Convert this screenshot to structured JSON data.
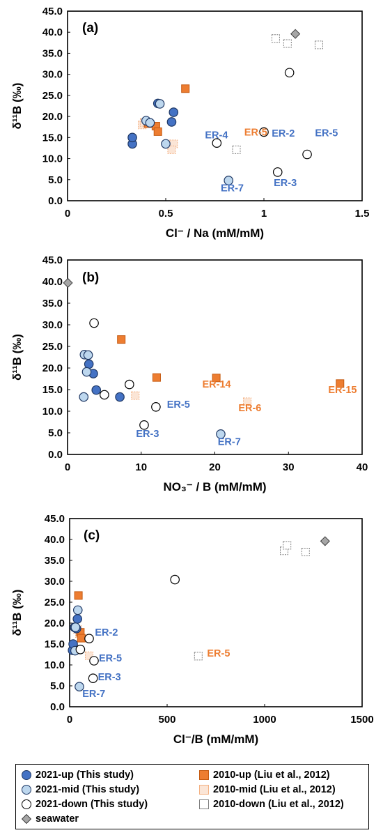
{
  "chart_data": [
    {
      "type": "scatter",
      "panel_label": "(a)",
      "xlabel": "Cl⁻ / Na (mM/mM)",
      "ylabel": "δ¹¹B (‰)",
      "xlim": [
        0,
        1.5
      ],
      "ylim": [
        0,
        45
      ],
      "x_ticks": [
        "0",
        "0.5",
        "1",
        "1.5"
      ],
      "y_ticks": [
        "0.0",
        "5.0",
        "10.0",
        "15.0",
        "20.0",
        "25.0",
        "30.0",
        "35.0",
        "40.0",
        "45.0"
      ],
      "series": [
        {
          "name": "2021-up (This study)",
          "points": [
            [
              0.33,
              13.5
            ],
            [
              0.33,
              15.0
            ],
            [
              0.53,
              18.7
            ],
            [
              0.54,
              21.0
            ],
            [
              0.46,
              23.1
            ]
          ]
        },
        {
          "name": "2021-mid (This study)",
          "points": [
            [
              0.4,
              19.0
            ],
            [
              0.42,
              18.5
            ],
            [
              0.47,
              23.0
            ],
            [
              0.5,
              13.5
            ],
            [
              0.82,
              4.8
            ]
          ]
        },
        {
          "name": "2021-down (This study)",
          "points": [
            [
              0.76,
              13.7
            ],
            [
              1.0,
              16.3
            ],
            [
              1.13,
              30.4
            ],
            [
              1.07,
              6.8
            ],
            [
              1.22,
              11.0
            ]
          ]
        },
        {
          "name": "2010-up (Liu et al., 2012)",
          "points": [
            [
              0.41,
              18.3
            ],
            [
              0.45,
              17.7
            ],
            [
              0.46,
              16.4
            ],
            [
              0.6,
              26.6
            ]
          ]
        },
        {
          "name": "2010-mid (Liu et al., 2012)",
          "points": [
            [
              0.38,
              18.0
            ],
            [
              0.39,
              18.6
            ],
            [
              0.54,
              13.5
            ],
            [
              0.53,
              12.1
            ]
          ]
        },
        {
          "name": "2010-down (Liu et al., 2012)",
          "points": [
            [
              0.86,
              12.1
            ],
            [
              1.06,
              38.5
            ],
            [
              1.12,
              37.3
            ],
            [
              1.28,
              37.0
            ]
          ]
        },
        {
          "name": "seawater",
          "points": [
            [
              1.16,
              39.6
            ]
          ]
        }
      ],
      "annotations": [
        {
          "text": "ER-2",
          "x": 1.04,
          "y": 15.2,
          "color": "blue"
        },
        {
          "text": "ER-4",
          "x": 0.7,
          "y": 14.8,
          "color": "blue"
        },
        {
          "text": "ER-5",
          "x": 0.9,
          "y": 15.5,
          "color": "orange"
        },
        {
          "text": "ER-5",
          "x": 1.26,
          "y": 15.3,
          "color": "blue"
        },
        {
          "text": "ER-7",
          "x": 0.78,
          "y": 2.2,
          "color": "blue"
        },
        {
          "text": "ER-3",
          "x": 1.05,
          "y": 3.5,
          "color": "blue"
        }
      ]
    },
    {
      "type": "scatter",
      "panel_label": "(b)",
      "xlabel": "NO₃⁻ / B (mM/mM)",
      "ylabel": "δ¹¹B (‰)",
      "xlim": [
        0,
        40
      ],
      "ylim": [
        0,
        45
      ],
      "x_ticks": [
        "0",
        "10",
        "20",
        "30",
        "40"
      ],
      "y_ticks": [
        "0.0",
        "5.0",
        "10.0",
        "15.0",
        "20.0",
        "25.0",
        "30.0",
        "35.0",
        "40.0",
        "45.0"
      ],
      "series": [
        {
          "name": "2021-up (This study)",
          "points": [
            [
              2.9,
              20.9
            ],
            [
              3.5,
              18.7
            ],
            [
              3.9,
              14.9
            ],
            [
              7.1,
              13.3
            ]
          ]
        },
        {
          "name": "2021-mid (This study)",
          "points": [
            [
              2.3,
              23.1
            ],
            [
              2.6,
              19.1
            ],
            [
              2.8,
              23.0
            ],
            [
              2.2,
              13.3
            ],
            [
              20.8,
              4.7
            ]
          ]
        },
        {
          "name": "2021-down (This study)",
          "points": [
            [
              3.6,
              30.4
            ],
            [
              8.4,
              16.2
            ],
            [
              5.0,
              13.8
            ],
            [
              12.0,
              11.0
            ],
            [
              10.4,
              6.8
            ]
          ]
        },
        {
          "name": "2010-up (Liu et al., 2012)",
          "points": [
            [
              7.3,
              26.6
            ],
            [
              12.1,
              17.8
            ],
            [
              20.2,
              17.7
            ],
            [
              37.0,
              16.4
            ]
          ]
        },
        {
          "name": "2010-mid (Liu et al., 2012)",
          "points": [
            [
              9.2,
              13.6
            ],
            [
              24.4,
              12.2
            ]
          ]
        },
        {
          "name": "2010-down (Liu et al., 2012)",
          "points": []
        },
        {
          "name": "seawater",
          "points": [
            [
              0.05,
              39.7
            ]
          ]
        }
      ],
      "annotations": [
        {
          "text": "ER-5",
          "x": 13.5,
          "y": 10.8,
          "color": "blue"
        },
        {
          "text": "ER-3",
          "x": 9.3,
          "y": 4.0,
          "color": "blue"
        },
        {
          "text": "ER-7",
          "x": 20.4,
          "y": 2.2,
          "color": "blue"
        },
        {
          "text": "ER-14",
          "x": 18.3,
          "y": 15.5,
          "color": "orange"
        },
        {
          "text": "ER-6",
          "x": 23.2,
          "y": 10.0,
          "color": "orange"
        },
        {
          "text": "ER-15",
          "x": 35.4,
          "y": 14.2,
          "color": "orange"
        }
      ]
    },
    {
      "type": "scatter",
      "panel_label": "(c)",
      "xlabel": "Cl⁻/B (mM/mM)",
      "ylabel": "δ¹¹B (‰)",
      "xlim": [
        0,
        1500
      ],
      "ylim": [
        0,
        45
      ],
      "x_ticks": [
        "0",
        "500",
        "1000",
        "1500"
      ],
      "y_ticks": [
        "0.0",
        "5.0",
        "10.0",
        "15.0",
        "20.0",
        "25.0",
        "30.0",
        "35.0",
        "40.0",
        "45.0"
      ],
      "series": [
        {
          "name": "2021-up (This study)",
          "points": [
            [
              15,
              13.5
            ],
            [
              18,
              15.0
            ],
            [
              35,
              18.7
            ],
            [
              40,
              21.0
            ],
            [
              25,
              19.0
            ]
          ]
        },
        {
          "name": "2021-mid (This study)",
          "points": [
            [
              42,
              23.1
            ],
            [
              30,
              19.0
            ],
            [
              28,
              13.4
            ],
            [
              50,
              4.8
            ]
          ]
        },
        {
          "name": "2021-down (This study)",
          "points": [
            [
              540,
              30.4
            ],
            [
              100,
              16.3
            ],
            [
              55,
              13.7
            ],
            [
              125,
              11.0
            ],
            [
              120,
              6.8
            ]
          ]
        },
        {
          "name": "2010-up (Liu et al., 2012)",
          "points": [
            [
              45,
              26.6
            ],
            [
              55,
              17.8
            ],
            [
              60,
              16.4
            ]
          ]
        },
        {
          "name": "2010-mid (Liu et al., 2012)",
          "points": [
            [
              40,
              18.5
            ],
            [
              50,
              17.5
            ],
            [
              100,
              12.2
            ]
          ]
        },
        {
          "name": "2010-down (Liu et al., 2012)",
          "points": [
            [
              660,
              12.1
            ],
            [
              1100,
              37.3
            ],
            [
              1115,
              38.6
            ],
            [
              1210,
              37.0
            ]
          ]
        },
        {
          "name": "seawater",
          "points": [
            [
              1310,
              39.6
            ]
          ]
        }
      ],
      "annotations": [
        {
          "text": "ER-2",
          "x": 130,
          "y": 17.0,
          "color": "blue"
        },
        {
          "text": "ER-5",
          "x": 150,
          "y": 10.8,
          "color": "blue"
        },
        {
          "text": "ER-3",
          "x": 145,
          "y": 6.3,
          "color": "blue"
        },
        {
          "text": "ER-7",
          "x": 65,
          "y": 2.3,
          "color": "blue"
        },
        {
          "text": "ER-5",
          "x": 705,
          "y": 12.0,
          "color": "orange"
        }
      ]
    }
  ],
  "legend": {
    "items": [
      {
        "label": "2021-up (This study)",
        "symbol": "circle",
        "fill": "#4472c4",
        "stroke": "#1f3864"
      },
      {
        "label": "2010-up (Liu et al., 2012)",
        "symbol": "square",
        "fill": "#ed7d31",
        "stroke": "#c55a11"
      },
      {
        "label": "2021-mid (This study)",
        "symbol": "circle",
        "fill": "#bdd7ee",
        "stroke": "#1f3864"
      },
      {
        "label": "2010-mid (Liu et al., 2012)",
        "symbol": "square",
        "fill": "#fbe5d6",
        "stroke": "#f4b183"
      },
      {
        "label": "2021-down (This study)",
        "symbol": "circle",
        "fill": "#ffffff",
        "stroke": "#000000"
      },
      {
        "label": "2010-down (Liu et al., 2012)",
        "symbol": "square",
        "fill": "#ffffff",
        "stroke": "#7f7f7f"
      },
      {
        "label": "seawater",
        "symbol": "diamond",
        "fill": "#a6a6a6",
        "stroke": "#404040"
      }
    ]
  },
  "colors": {
    "annotation_blue": "#4472c4",
    "annotation_orange": "#ed7d31"
  }
}
